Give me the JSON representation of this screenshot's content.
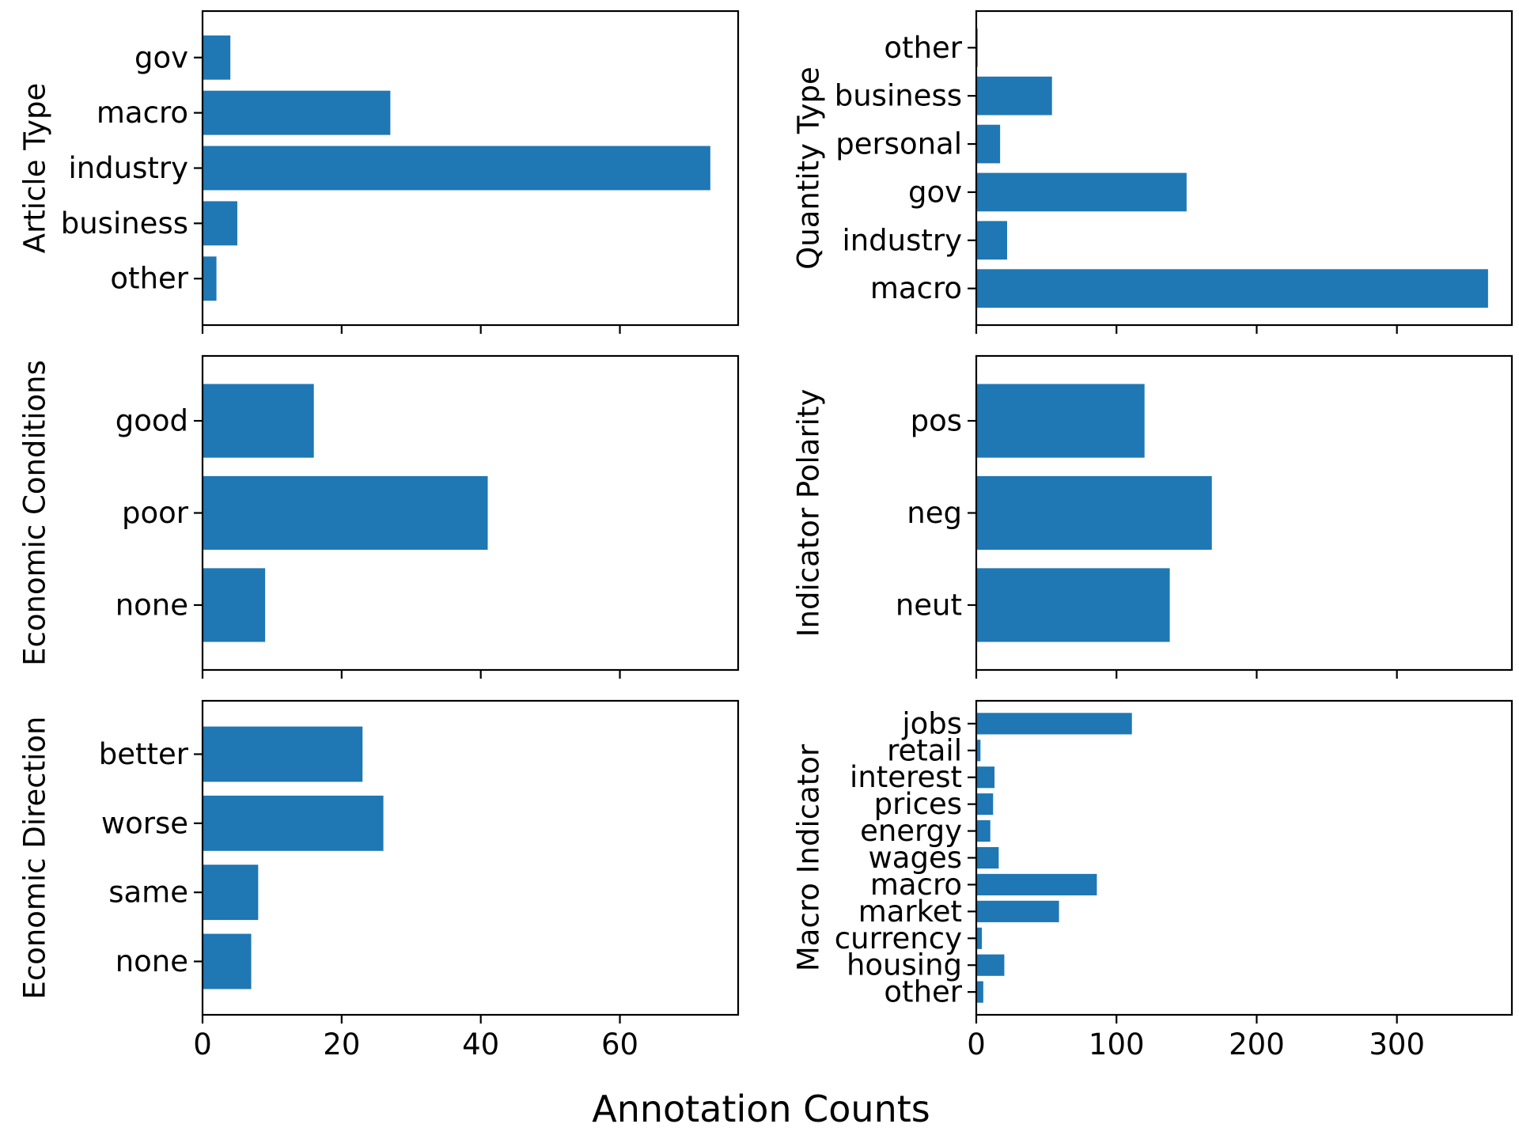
{
  "figure": {
    "xlabel": "Annotation Counts",
    "bar_color": "#1f77b4"
  },
  "chart_data": [
    {
      "type": "bar",
      "orientation": "horizontal",
      "ylabel": "Article Type",
      "categories": [
        "gov",
        "macro",
        "industry",
        "business",
        "other"
      ],
      "values": [
        4,
        27,
        73,
        5,
        2
      ],
      "xlim": [
        0,
        77
      ],
      "xticks": [
        0,
        20,
        40,
        60
      ],
      "show_xtick_labels": false
    },
    {
      "type": "bar",
      "orientation": "horizontal",
      "ylabel": "Quantity Type",
      "categories": [
        "other",
        "business",
        "personal",
        "gov",
        "industry",
        "macro"
      ],
      "values": [
        1,
        54,
        17,
        150,
        22,
        365
      ],
      "xlim": [
        0,
        382
      ],
      "xticks": [
        0,
        100,
        200,
        300
      ],
      "show_xtick_labels": false
    },
    {
      "type": "bar",
      "orientation": "horizontal",
      "ylabel": "Economic Conditions",
      "categories": [
        "good",
        "poor",
        "none"
      ],
      "values": [
        16,
        41,
        9
      ],
      "xlim": [
        0,
        77
      ],
      "xticks": [
        0,
        20,
        40,
        60
      ],
      "show_xtick_labels": false
    },
    {
      "type": "bar",
      "orientation": "horizontal",
      "ylabel": "Indicator Polarity",
      "categories": [
        "pos",
        "neg",
        "neut"
      ],
      "values": [
        120,
        168,
        138
      ],
      "xlim": [
        0,
        382
      ],
      "xticks": [
        0,
        100,
        200,
        300
      ],
      "show_xtick_labels": false
    },
    {
      "type": "bar",
      "orientation": "horizontal",
      "ylabel": "Economic Direction",
      "categories": [
        "better",
        "worse",
        "same",
        "none"
      ],
      "values": [
        23,
        26,
        8,
        7
      ],
      "xlim": [
        0,
        77
      ],
      "xticks": [
        0,
        20,
        40,
        60
      ],
      "show_xtick_labels": true
    },
    {
      "type": "bar",
      "orientation": "horizontal",
      "ylabel": "Macro Indicator",
      "categories": [
        "jobs",
        "retail",
        "interest",
        "prices",
        "energy",
        "wages",
        "macro",
        "market",
        "currency",
        "housing",
        "other"
      ],
      "values": [
        111,
        3,
        13,
        12,
        10,
        16,
        86,
        59,
        4,
        20,
        5
      ],
      "xlim": [
        0,
        382
      ],
      "xticks": [
        0,
        100,
        200,
        300
      ],
      "show_xtick_labels": true
    }
  ]
}
